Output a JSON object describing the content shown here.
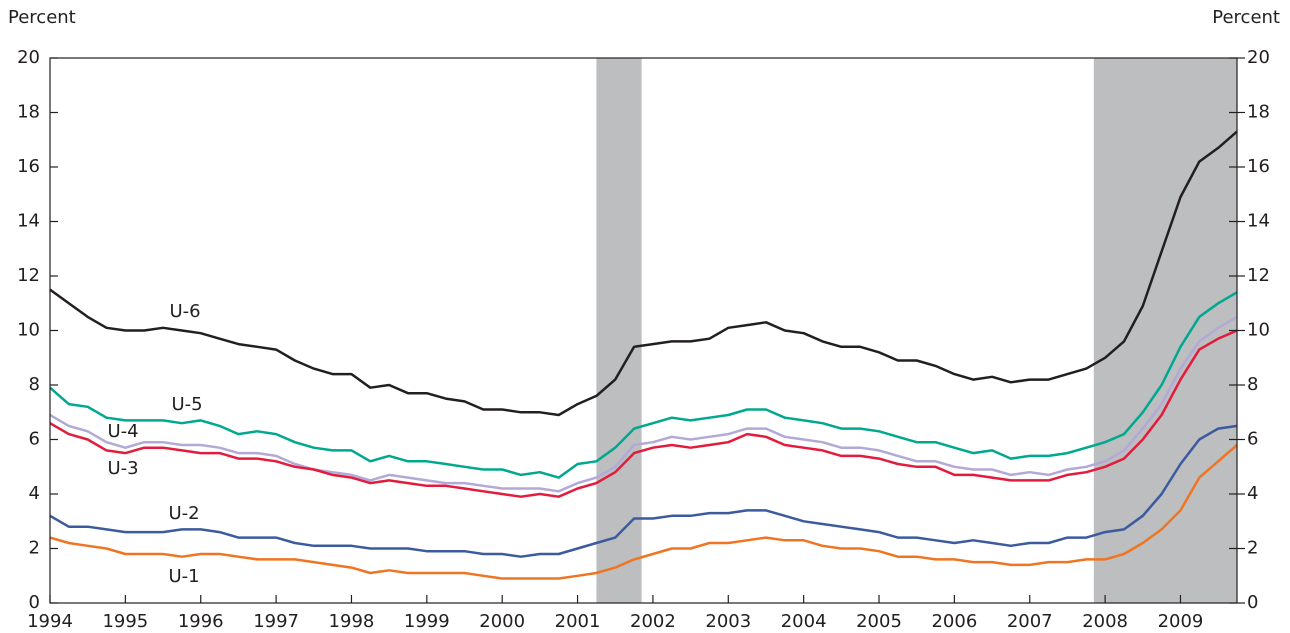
{
  "chart_data": {
    "type": "line",
    "y_label": "Percent",
    "y2_label": "Percent",
    "x": [
      1994,
      1994.25,
      1994.5,
      1994.75,
      1995,
      1995.25,
      1995.5,
      1995.75,
      1996,
      1996.25,
      1996.5,
      1996.75,
      1997,
      1997.25,
      1997.5,
      1997.75,
      1998,
      1998.25,
      1998.5,
      1998.75,
      1999,
      1999.25,
      1999.5,
      1999.75,
      2000,
      2000.25,
      2000.5,
      2000.75,
      2001,
      2001.25,
      2001.5,
      2001.75,
      2002,
      2002.25,
      2002.5,
      2002.75,
      2003,
      2003.25,
      2003.5,
      2003.75,
      2004,
      2004.25,
      2004.5,
      2004.75,
      2005,
      2005.25,
      2005.5,
      2005.75,
      2006,
      2006.25,
      2006.5,
      2006.75,
      2007,
      2007.25,
      2007.5,
      2007.75,
      2008,
      2008.25,
      2008.5,
      2008.75,
      2009,
      2009.25,
      2009.5,
      2009.75
    ],
    "xlim": [
      1994,
      2009.75
    ],
    "xticks": [
      1994,
      1995,
      1996,
      1997,
      1998,
      1999,
      2000,
      2001,
      2002,
      2003,
      2004,
      2005,
      2006,
      2007,
      2008,
      2009
    ],
    "ylim": [
      0,
      20
    ],
    "yticks": [
      0,
      2,
      4,
      6,
      8,
      10,
      12,
      14,
      16,
      18,
      20
    ],
    "y2lim": [
      0,
      20
    ],
    "y2ticks": [
      0,
      2,
      4,
      6,
      8,
      10,
      12,
      14,
      16,
      18,
      20
    ],
    "shaded_periods": [
      [
        2001.25,
        2001.85
      ],
      [
        2007.85,
        2009.75
      ]
    ],
    "shade_color": "#bcbec0",
    "series": [
      {
        "name": "U-6",
        "color": "#231f20",
        "values": [
          11.5,
          11.0,
          10.5,
          10.1,
          10.0,
          10.0,
          10.1,
          10.0,
          9.9,
          9.7,
          9.5,
          9.4,
          9.3,
          8.9,
          8.6,
          8.4,
          8.4,
          7.9,
          8.0,
          7.7,
          7.7,
          7.5,
          7.4,
          7.1,
          7.1,
          7.0,
          7.0,
          6.9,
          7.3,
          7.6,
          8.2,
          9.4,
          9.5,
          9.6,
          9.6,
          9.7,
          10.1,
          10.2,
          10.3,
          10.0,
          9.9,
          9.6,
          9.4,
          9.4,
          9.2,
          8.9,
          8.9,
          8.7,
          8.4,
          8.2,
          8.3,
          8.1,
          8.2,
          8.2,
          8.4,
          8.6,
          9.0,
          9.6,
          10.9,
          12.9,
          14.9,
          16.2,
          16.7,
          17.3
        ]
      },
      {
        "name": "U-5",
        "color": "#00a88f",
        "values": [
          7.9,
          7.3,
          7.2,
          6.8,
          6.7,
          6.7,
          6.7,
          6.6,
          6.7,
          6.5,
          6.2,
          6.3,
          6.2,
          5.9,
          5.7,
          5.6,
          5.6,
          5.2,
          5.4,
          5.2,
          5.2,
          5.1,
          5.0,
          4.9,
          4.9,
          4.7,
          4.8,
          4.6,
          5.1,
          5.2,
          5.7,
          6.4,
          6.6,
          6.8,
          6.7,
          6.8,
          6.9,
          7.1,
          7.1,
          6.8,
          6.7,
          6.6,
          6.4,
          6.4,
          6.3,
          6.1,
          5.9,
          5.9,
          5.7,
          5.5,
          5.6,
          5.3,
          5.4,
          5.4,
          5.5,
          5.7,
          5.9,
          6.2,
          7.0,
          8.0,
          9.4,
          10.5,
          11.0,
          11.4
        ]
      },
      {
        "name": "U-4",
        "color": "#b3a9d6",
        "values": [
          6.9,
          6.5,
          6.3,
          5.9,
          5.7,
          5.9,
          5.9,
          5.8,
          5.8,
          5.7,
          5.5,
          5.5,
          5.4,
          5.1,
          4.9,
          4.8,
          4.7,
          4.5,
          4.7,
          4.6,
          4.5,
          4.4,
          4.4,
          4.3,
          4.2,
          4.2,
          4.2,
          4.1,
          4.4,
          4.6,
          5.0,
          5.8,
          5.9,
          6.1,
          6.0,
          6.1,
          6.2,
          6.4,
          6.4,
          6.1,
          6.0,
          5.9,
          5.7,
          5.7,
          5.6,
          5.4,
          5.2,
          5.2,
          5.0,
          4.9,
          4.9,
          4.7,
          4.8,
          4.7,
          4.9,
          5.0,
          5.2,
          5.6,
          6.4,
          7.3,
          8.6,
          9.6,
          10.1,
          10.5
        ]
      },
      {
        "name": "U-3",
        "color": "#e31b3c",
        "values": [
          6.6,
          6.2,
          6.0,
          5.6,
          5.5,
          5.7,
          5.7,
          5.6,
          5.5,
          5.5,
          5.3,
          5.3,
          5.2,
          5.0,
          4.9,
          4.7,
          4.6,
          4.4,
          4.5,
          4.4,
          4.3,
          4.3,
          4.2,
          4.1,
          4.0,
          3.9,
          4.0,
          3.9,
          4.2,
          4.4,
          4.8,
          5.5,
          5.7,
          5.8,
          5.7,
          5.8,
          5.9,
          6.2,
          6.1,
          5.8,
          5.7,
          5.6,
          5.4,
          5.4,
          5.3,
          5.1,
          5.0,
          5.0,
          4.7,
          4.7,
          4.6,
          4.5,
          4.5,
          4.5,
          4.7,
          4.8,
          5.0,
          5.3,
          6.0,
          6.9,
          8.2,
          9.3,
          9.7,
          10.0
        ]
      },
      {
        "name": "U-2",
        "color": "#3c5a9e",
        "values": [
          3.2,
          2.8,
          2.8,
          2.7,
          2.6,
          2.6,
          2.6,
          2.7,
          2.7,
          2.6,
          2.4,
          2.4,
          2.4,
          2.2,
          2.1,
          2.1,
          2.1,
          2.0,
          2.0,
          2.0,
          1.9,
          1.9,
          1.9,
          1.8,
          1.8,
          1.7,
          1.8,
          1.8,
          2.0,
          2.2,
          2.4,
          3.1,
          3.1,
          3.2,
          3.2,
          3.3,
          3.3,
          3.4,
          3.4,
          3.2,
          3.0,
          2.9,
          2.8,
          2.7,
          2.6,
          2.4,
          2.4,
          2.3,
          2.2,
          2.3,
          2.2,
          2.1,
          2.2,
          2.2,
          2.4,
          2.4,
          2.6,
          2.7,
          3.2,
          4.0,
          5.1,
          6.0,
          6.4,
          6.5
        ]
      },
      {
        "name": "U-1",
        "color": "#f07522",
        "values": [
          2.4,
          2.2,
          2.1,
          2.0,
          1.8,
          1.8,
          1.8,
          1.7,
          1.8,
          1.8,
          1.7,
          1.6,
          1.6,
          1.6,
          1.5,
          1.4,
          1.3,
          1.1,
          1.2,
          1.1,
          1.1,
          1.1,
          1.1,
          1.0,
          0.9,
          0.9,
          0.9,
          0.9,
          1.0,
          1.1,
          1.3,
          1.6,
          1.8,
          2.0,
          2.0,
          2.2,
          2.2,
          2.3,
          2.4,
          2.3,
          2.3,
          2.1,
          2.0,
          2.0,
          1.9,
          1.7,
          1.7,
          1.6,
          1.6,
          1.5,
          1.5,
          1.4,
          1.4,
          1.5,
          1.5,
          1.6,
          1.6,
          1.8,
          2.2,
          2.7,
          3.4,
          4.6,
          5.2,
          5.8
        ]
      }
    ]
  }
}
